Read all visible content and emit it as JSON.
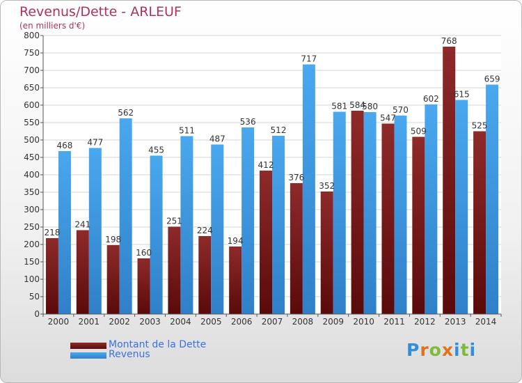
{
  "header": {
    "title": "Revenus/Dette - ARLEUF",
    "subtitle": "(en milliers d'€)"
  },
  "legend": {
    "items": [
      {
        "label": "Montant de la Dette",
        "color": "#7a1c1c"
      },
      {
        "label": "Revenus",
        "color": "#3f9fe6"
      }
    ]
  },
  "logo": {
    "text": "Proxiti"
  },
  "chart_data": {
    "type": "bar",
    "title": "Revenus/Dette - ARLEUF",
    "subtitle": "(en milliers d'€)",
    "xlabel": "",
    "ylabel": "",
    "ylim": [
      0,
      800
    ],
    "yticks": [
      0,
      50,
      100,
      150,
      200,
      250,
      300,
      350,
      400,
      450,
      500,
      550,
      600,
      650,
      700,
      750,
      800
    ],
    "grid": true,
    "legend_position": "bottom-left",
    "categories": [
      "2000",
      "2001",
      "2002",
      "2003",
      "2004",
      "2005",
      "2006",
      "2007",
      "2008",
      "2009",
      "2010",
      "2011",
      "2012",
      "2013",
      "2014"
    ],
    "series": [
      {
        "name": "Montant de la Dette",
        "color": "#7a1c1c",
        "values": [
          218,
          241,
          198,
          160,
          251,
          224,
          194,
          412,
          376,
          352,
          584,
          547,
          509,
          768,
          525
        ]
      },
      {
        "name": "Revenus",
        "color": "#3f9fe6",
        "values": [
          468,
          477,
          562,
          455,
          511,
          487,
          536,
          512,
          717,
          581,
          580,
          570,
          602,
          615,
          659
        ]
      }
    ]
  }
}
